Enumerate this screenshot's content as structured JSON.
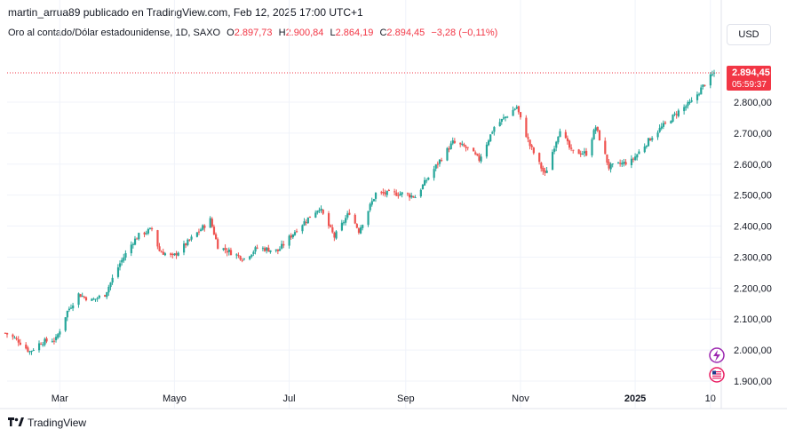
{
  "header": {
    "publisher": "martin_arrua89 publicado en TradingView.com, Feb 12, 2025 17:00 UTC+1"
  },
  "legend": {
    "symbol": "Oro al contado/Dólar estadounidense, 1D, SAXO",
    "open_label": "O",
    "open": "2.897,73",
    "high_label": "H",
    "high": "2.900,84",
    "low_label": "L",
    "low": "2.864,19",
    "close_label": "C",
    "close": "2.894,45",
    "change": "−3,28 (−0,11%)"
  },
  "currency_button": "USD",
  "price_tag": {
    "price": "2.894,45",
    "countdown": "05:59:37"
  },
  "footer": {
    "brand": "TradingView"
  },
  "colors": {
    "up": "#26a69a",
    "down": "#ef5350",
    "grid": "#f0f3fa",
    "text": "#131722",
    "price_line": "#f23645",
    "tag": "#f23645",
    "event_lightning": "#9c27b0",
    "event_flag": "#e91e63"
  },
  "icons": {
    "event_1": "lightning-icon",
    "event_2": "us-flag-icon",
    "brand": "tradingview-logo-icon"
  },
  "chart_data": {
    "type": "candlestick",
    "title": "",
    "xlabel": "",
    "ylabel": "",
    "ylim": [
      1850,
      2960
    ],
    "y_ticks": [
      1900,
      2000,
      2100,
      2200,
      2300,
      2400,
      2500,
      2600,
      2700,
      2800
    ],
    "y_tick_labels": [
      "1.900,00",
      "2.000,00",
      "2.100,00",
      "2.200,00",
      "2.300,00",
      "2.400,00",
      "2.500,00",
      "2.600,00",
      "2.700,00",
      "2.800,00"
    ],
    "x_tick_labels": [
      {
        "label": "Mar",
        "date": "2024-03-01",
        "bold": false
      },
      {
        "label": "Mayo",
        "date": "2024-05-01",
        "bold": false
      },
      {
        "label": "Jul",
        "date": "2024-07-01",
        "bold": false
      },
      {
        "label": "Sep",
        "date": "2024-09-01",
        "bold": false
      },
      {
        "label": "Nov",
        "date": "2024-11-01",
        "bold": false
      },
      {
        "label": "2025",
        "date": "2025-01-01",
        "bold": true
      },
      {
        "label": "10",
        "date": "2025-02-10",
        "bold": false
      }
    ],
    "last_price": 2894.45,
    "grid": true,
    "approx_close_path": [
      {
        "date": "2024-02-01",
        "close": 2055
      },
      {
        "date": "2024-02-08",
        "close": 2030
      },
      {
        "date": "2024-02-14",
        "close": 1995
      },
      {
        "date": "2024-02-20",
        "close": 2025
      },
      {
        "date": "2024-02-28",
        "close": 2035
      },
      {
        "date": "2024-03-05",
        "close": 2125
      },
      {
        "date": "2024-03-11",
        "close": 2180
      },
      {
        "date": "2024-03-18",
        "close": 2160
      },
      {
        "date": "2024-03-25",
        "close": 2180
      },
      {
        "date": "2024-04-02",
        "close": 2280
      },
      {
        "date": "2024-04-09",
        "close": 2350
      },
      {
        "date": "2024-04-12",
        "close": 2370
      },
      {
        "date": "2024-04-19",
        "close": 2390
      },
      {
        "date": "2024-04-23",
        "close": 2320
      },
      {
        "date": "2024-04-30",
        "close": 2300
      },
      {
        "date": "2024-05-10",
        "close": 2360
      },
      {
        "date": "2024-05-20",
        "close": 2420
      },
      {
        "date": "2024-05-24",
        "close": 2335
      },
      {
        "date": "2024-06-07",
        "close": 2295
      },
      {
        "date": "2024-06-14",
        "close": 2330
      },
      {
        "date": "2024-06-25",
        "close": 2320
      },
      {
        "date": "2024-07-05",
        "close": 2390
      },
      {
        "date": "2024-07-17",
        "close": 2460
      },
      {
        "date": "2024-07-25",
        "close": 2365
      },
      {
        "date": "2024-08-02",
        "close": 2445
      },
      {
        "date": "2024-08-07",
        "close": 2385
      },
      {
        "date": "2024-08-16",
        "close": 2505
      },
      {
        "date": "2024-08-30",
        "close": 2505
      },
      {
        "date": "2024-09-06",
        "close": 2495
      },
      {
        "date": "2024-09-20",
        "close": 2620
      },
      {
        "date": "2024-09-26",
        "close": 2670
      },
      {
        "date": "2024-10-04",
        "close": 2650
      },
      {
        "date": "2024-10-10",
        "close": 2615
      },
      {
        "date": "2024-10-18",
        "close": 2720
      },
      {
        "date": "2024-10-30",
        "close": 2785
      },
      {
        "date": "2024-11-01",
        "close": 2745
      },
      {
        "date": "2024-11-06",
        "close": 2660
      },
      {
        "date": "2024-11-14",
        "close": 2565
      },
      {
        "date": "2024-11-22",
        "close": 2715
      },
      {
        "date": "2024-11-28",
        "close": 2640
      },
      {
        "date": "2024-12-06",
        "close": 2635
      },
      {
        "date": "2024-12-11",
        "close": 2720
      },
      {
        "date": "2024-12-18",
        "close": 2590
      },
      {
        "date": "2024-12-30",
        "close": 2610
      },
      {
        "date": "2025-01-10",
        "close": 2690
      },
      {
        "date": "2025-01-24",
        "close": 2770
      },
      {
        "date": "2025-01-31",
        "close": 2800
      },
      {
        "date": "2025-02-07",
        "close": 2860
      },
      {
        "date": "2025-02-12",
        "close": 2894.45
      }
    ]
  }
}
